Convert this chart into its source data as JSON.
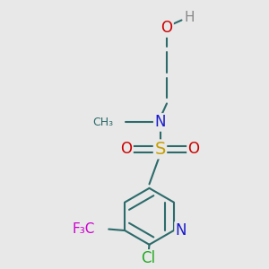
{
  "bg_color": "#e8e8e8",
  "bond_color": "#2d6b6b",
  "bond_lw": 1.5,
  "dbo": 0.016,
  "colors": {
    "C": "#2d6b6b",
    "N": "#1a1acc",
    "O": "#cc0000",
    "S": "#c8a000",
    "Cl": "#22aa22",
    "F": "#cc00cc",
    "H": "#888888"
  }
}
